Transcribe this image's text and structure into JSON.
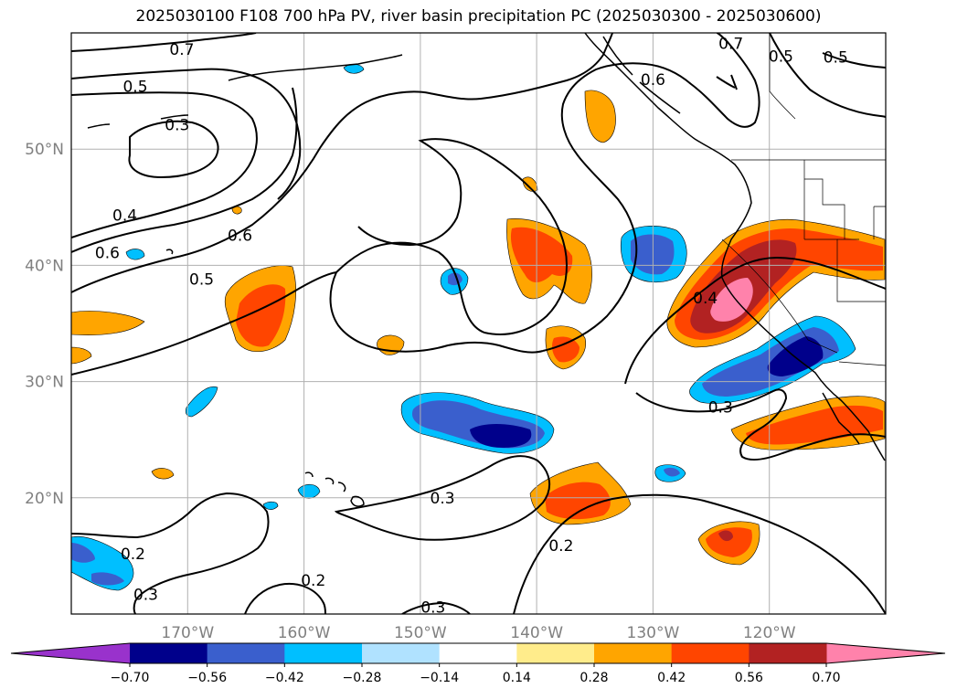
{
  "title": "2025030100 F108 700 hPa PV, river basin precipitation PC (2025030300 - 2025030600)",
  "map": {
    "lon_range": [
      -180,
      -110
    ],
    "lat_range": [
      10,
      60
    ],
    "lat_ticks": [
      {
        "value": 50,
        "label": "50°N"
      },
      {
        "value": 40,
        "label": "40°N"
      },
      {
        "value": 30,
        "label": "30°N"
      },
      {
        "value": 20,
        "label": "20°N"
      }
    ],
    "lon_ticks": [
      {
        "value": -170,
        "label": "170°W"
      },
      {
        "value": -160,
        "label": "160°W"
      },
      {
        "value": -150,
        "label": "150°W"
      },
      {
        "value": -140,
        "label": "140°W"
      },
      {
        "value": -130,
        "label": "130°W"
      },
      {
        "value": -120,
        "label": "120°W"
      }
    ],
    "gridlines": true,
    "contour_labels": [
      {
        "text": "0.7",
        "lon": -170.5,
        "lat": 58.6
      },
      {
        "text": "0.5",
        "lon": -174.5,
        "lat": 55.4
      },
      {
        "text": "0.3",
        "lon": -170.9,
        "lat": 52.1
      },
      {
        "text": "0.4",
        "lon": -175.4,
        "lat": 44.3
      },
      {
        "text": "0.6",
        "lon": -176.9,
        "lat": 41.1
      },
      {
        "text": "0.6",
        "lon": -165.5,
        "lat": 42.6
      },
      {
        "text": "0.5",
        "lon": -168.8,
        "lat": 38.8
      },
      {
        "text": "0.7",
        "lon": -123.3,
        "lat": 59.1
      },
      {
        "text": "0.6",
        "lon": -130.0,
        "lat": 56.0
      },
      {
        "text": "0.5",
        "lon": -119.0,
        "lat": 58.0
      },
      {
        "text": "0.5",
        "lon": -114.3,
        "lat": 57.9
      },
      {
        "text": "0.4",
        "lon": -125.5,
        "lat": 37.2
      },
      {
        "text": "0.3",
        "lon": -124.2,
        "lat": 27.8
      },
      {
        "text": "0.3",
        "lon": -148.1,
        "lat": 20.0
      },
      {
        "text": "0.2",
        "lon": -137.9,
        "lat": 15.9
      },
      {
        "text": "0.2",
        "lon": -174.7,
        "lat": 15.2
      },
      {
        "text": "0.2",
        "lon": -159.2,
        "lat": 12.9
      },
      {
        "text": "0.3",
        "lon": -173.6,
        "lat": 11.7
      },
      {
        "text": "0.3",
        "lon": -148.9,
        "lat": 10.6
      }
    ]
  },
  "colorbar": {
    "levels": [
      "−0.70",
      "−0.56",
      "−0.42",
      "−0.28",
      "−0.14",
      "0.14",
      "0.28",
      "0.42",
      "0.56",
      "0.70"
    ],
    "colors": [
      "#9932cc",
      "#00008b",
      "#3a5fcd",
      "#00bfff",
      "#b0e2ff",
      "#ffffff",
      "#ffec8b",
      "#ffa500",
      "#ff4500",
      "#b22222",
      "#ff82ab"
    ]
  }
}
